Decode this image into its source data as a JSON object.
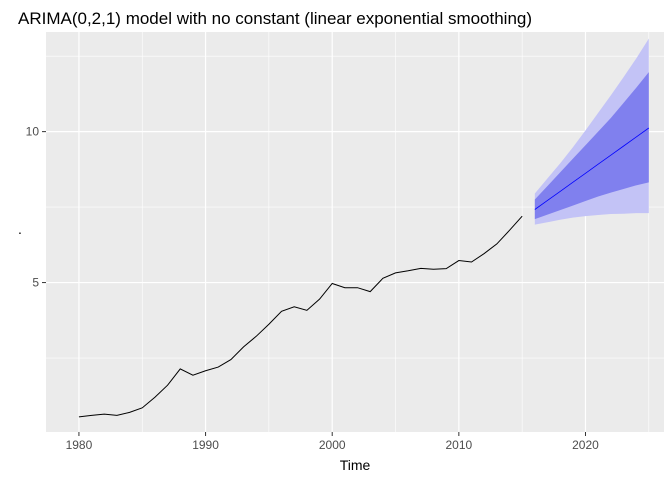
{
  "chart_data": {
    "type": "line",
    "title": "ARIMA(0,2,1) model with no constant (linear exponential smoothing)",
    "xlabel": "Time",
    "ylabel": ".",
    "xlim": [
      1977.4,
      2026.2
    ],
    "ylim": [
      0.05,
      13.3
    ],
    "grid": true,
    "x_ticks": [
      {
        "value": 1980,
        "label": "1980"
      },
      {
        "value": 1990,
        "label": "1990"
      },
      {
        "value": 2000,
        "label": "2000"
      },
      {
        "value": 2010,
        "label": "2010"
      },
      {
        "value": 2020,
        "label": "2020"
      }
    ],
    "y_ticks": [
      {
        "value": 5,
        "label": "5"
      },
      {
        "value": 10,
        "label": "10"
      }
    ],
    "y_minor_ticks": [
      2.5,
      7.5,
      12.5
    ],
    "x_minor_ticks": [
      1985,
      1995,
      2005,
      2015,
      2025
    ],
    "series": [
      {
        "role": "observed",
        "color": "#000000",
        "x": [
          1980,
          1981,
          1982,
          1983,
          1984,
          1985,
          1986,
          1987,
          1988,
          1989,
          1990,
          1991,
          1992,
          1993,
          1994,
          1995,
          1996,
          1997,
          1998,
          1999,
          2000,
          2001,
          2002,
          2003,
          2004,
          2005,
          2006,
          2007,
          2008,
          2009,
          2010,
          2011,
          2012,
          2013,
          2014,
          2015
        ],
        "y": [
          0.55,
          0.6,
          0.64,
          0.6,
          0.7,
          0.85,
          1.2,
          1.6,
          2.14,
          1.93,
          2.08,
          2.2,
          2.45,
          2.87,
          3.22,
          3.62,
          4.05,
          4.2,
          4.08,
          4.45,
          4.97,
          4.83,
          4.83,
          4.7,
          5.14,
          5.32,
          5.39,
          5.47,
          5.44,
          5.46,
          5.73,
          5.68,
          5.96,
          6.28,
          6.73,
          7.2
        ]
      },
      {
        "role": "forecast",
        "color": "#0000ff",
        "x": [
          2016,
          2017,
          2018,
          2019,
          2020,
          2021,
          2022,
          2023,
          2024,
          2025
        ],
        "y": [
          7.42,
          7.72,
          8.02,
          8.32,
          8.62,
          8.92,
          9.22,
          9.52,
          9.82,
          10.12
        ]
      }
    ],
    "intervals": [
      {
        "level": "95%",
        "color": "#c3c3f6",
        "x": [
          2016,
          2017,
          2018,
          2019,
          2020,
          2021,
          2022,
          2023,
          2024,
          2025
        ],
        "lower": [
          6.92,
          7.0,
          7.08,
          7.15,
          7.2,
          7.24,
          7.27,
          7.28,
          7.3,
          7.3
        ],
        "upper": [
          7.95,
          8.45,
          8.95,
          9.48,
          10.04,
          10.62,
          11.2,
          11.8,
          12.42,
          13.08
        ]
      },
      {
        "level": "80%",
        "color": "#8080ee",
        "x": [
          2016,
          2017,
          2018,
          2019,
          2020,
          2021,
          2022,
          2023,
          2024,
          2025
        ],
        "lower": [
          7.1,
          7.25,
          7.4,
          7.55,
          7.7,
          7.85,
          7.98,
          8.1,
          8.22,
          8.32
        ],
        "upper": [
          7.75,
          8.2,
          8.65,
          9.1,
          9.55,
          10.0,
          10.45,
          10.95,
          11.45,
          11.97
        ]
      }
    ]
  }
}
